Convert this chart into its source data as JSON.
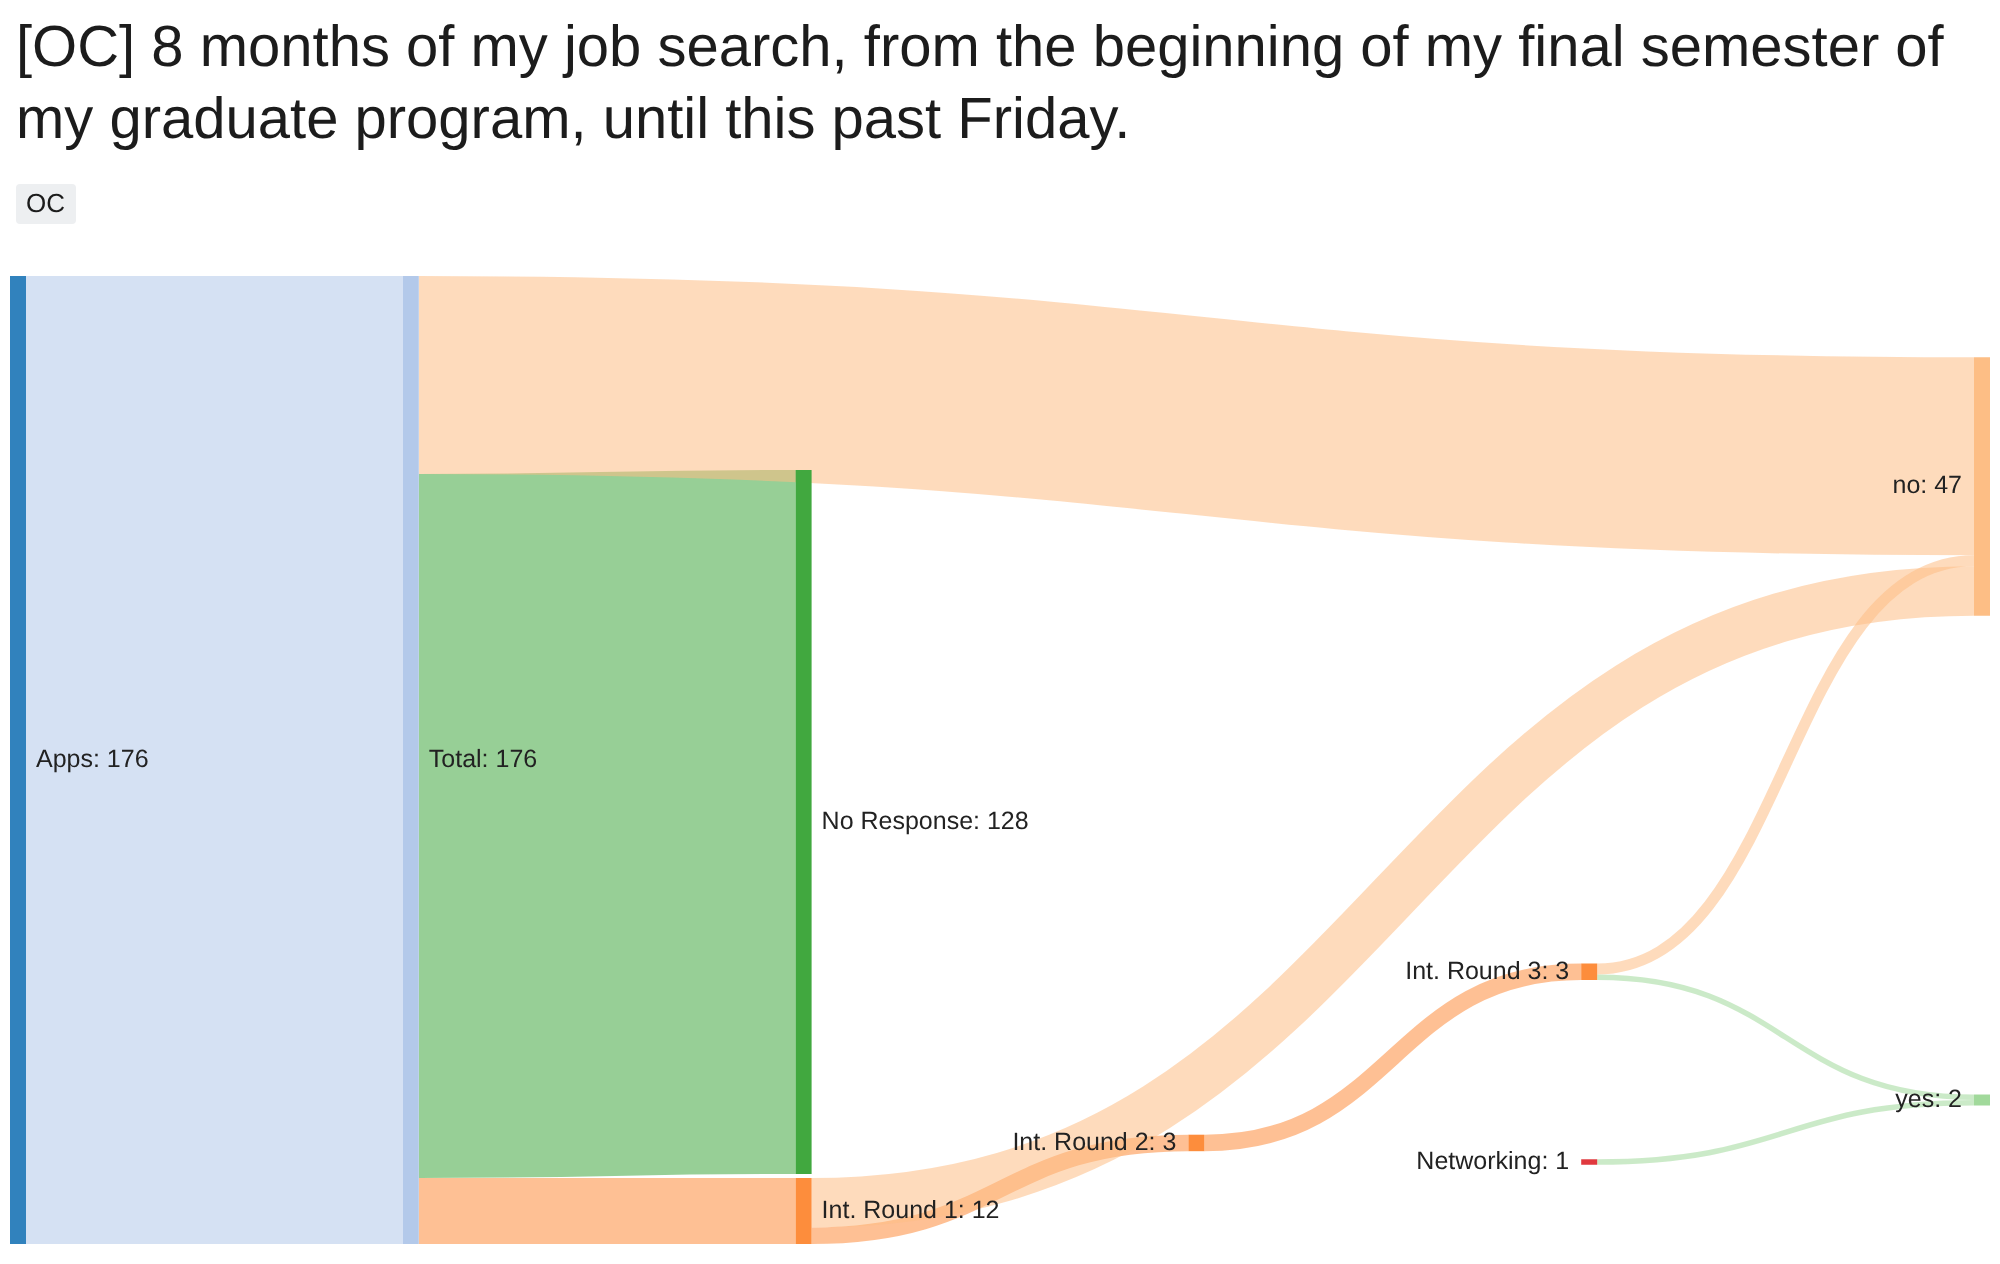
{
  "chart_data": {
    "type": "other",
    "title": "[OC] 8 months of my job search, from the beginning of my final semester of my graduate program, until this past Friday.",
    "subtitle": "OC",
    "categories": [
      "Apps",
      "Total",
      "No Response",
      "Int. Round 1",
      "Int. Round 2",
      "Int. Round 3",
      "Networking",
      "no",
      "yes"
    ],
    "values": [
      176,
      176,
      128,
      12,
      3,
      3,
      1,
      47,
      2
    ],
    "value_labels": [
      ": 176",
      ": 176",
      ": 128",
      ": 12",
      ": 3",
      ": 3",
      ": 1",
      ": 47",
      ": 2"
    ],
    "colors": [
      "#3182bd",
      "#b3c9ea",
      "#41a83f",
      "#fd8d3c",
      "#fd8d3c",
      "#fd8d3c",
      "#e0393e",
      "#fdbe85",
      "#a1d99b"
    ]
  }
}
